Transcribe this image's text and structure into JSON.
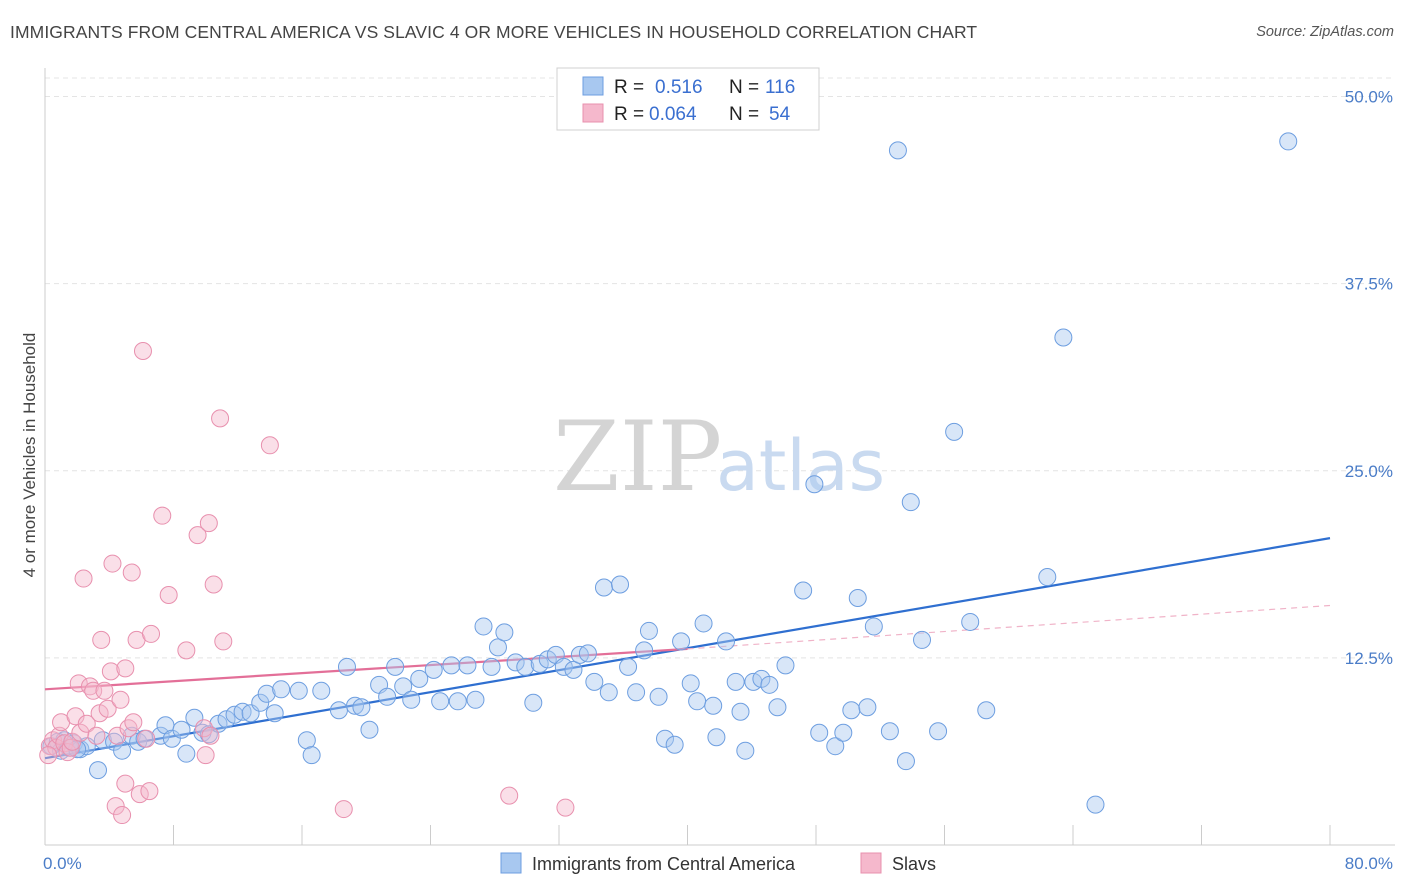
{
  "title": "IMMIGRANTS FROM CENTRAL AMERICA VS SLAVIC 4 OR MORE VEHICLES IN HOUSEHOLD CORRELATION CHART",
  "source": "Source: ZipAtlas.com",
  "watermark": {
    "zip": "ZIP",
    "atlas": "atlas"
  },
  "chart_data": {
    "type": "scatter",
    "title": "IMMIGRANTS FROM CENTRAL AMERICA VS SLAVIC 4 OR MORE VEHICLES IN HOUSEHOLD CORRELATION CHART",
    "xlabel": "",
    "ylabel": "4 or more Vehicles in Household",
    "xlim": [
      0,
      80
    ],
    "ylim": [
      0,
      50
    ],
    "y_ticks": [
      12.5,
      25.0,
      37.5,
      50.0
    ],
    "y_tick_labels": [
      "12.5%",
      "25.0%",
      "37.5%",
      "50.0%"
    ],
    "x_tick_labels": [
      "0.0%",
      "80.0%"
    ],
    "grid": true,
    "legend": {
      "position": "top-center",
      "entries": [
        {
          "r_label": "R =",
          "r_value": "0.516",
          "n_label": "N =",
          "n_value": "116",
          "color": "#a8c8f0"
        },
        {
          "r_label": "R =",
          "r_value": "0.064",
          "n_label": "N =",
          "n_value": "54",
          "color": "#f5b8cc"
        }
      ]
    },
    "series": [
      {
        "name": "Immigrants from Central America",
        "color": "#a8c8f0",
        "stroke": "#6d9ee0",
        "trend": {
          "x": [
            0,
            80
          ],
          "y": [
            5.8,
            20.5
          ],
          "color": "#2f6fd0"
        },
        "points": [
          [
            0.4,
            6.6
          ],
          [
            0.8,
            6.9
          ],
          [
            1.0,
            6.3
          ],
          [
            1.2,
            7.0
          ],
          [
            1.5,
            6.5
          ],
          [
            1.8,
            6.8
          ],
          [
            2.2,
            6.4
          ],
          [
            2.6,
            6.6
          ],
          [
            3.3,
            5.0
          ],
          [
            3.6,
            7.0
          ],
          [
            4.3,
            6.9
          ],
          [
            4.8,
            6.3
          ],
          [
            5.4,
            7.3
          ],
          [
            5.8,
            6.9
          ],
          [
            6.2,
            7.1
          ],
          [
            7.2,
            7.3
          ],
          [
            7.5,
            8.0
          ],
          [
            7.9,
            7.1
          ],
          [
            8.5,
            7.7
          ],
          [
            8.8,
            6.1
          ],
          [
            9.3,
            8.5
          ],
          [
            9.8,
            7.5
          ],
          [
            10.2,
            7.4
          ],
          [
            10.8,
            8.1
          ],
          [
            11.3,
            8.4
          ],
          [
            11.8,
            8.7
          ],
          [
            12.3,
            8.9
          ],
          [
            12.8,
            8.8
          ],
          [
            13.4,
            9.5
          ],
          [
            13.8,
            10.1
          ],
          [
            14.3,
            8.8
          ],
          [
            14.7,
            10.4
          ],
          [
            15.8,
            10.3
          ],
          [
            16.3,
            7.0
          ],
          [
            16.6,
            6.0
          ],
          [
            17.2,
            10.3
          ],
          [
            18.3,
            9.0
          ],
          [
            18.8,
            11.9
          ],
          [
            19.3,
            9.3
          ],
          [
            19.7,
            9.2
          ],
          [
            20.2,
            7.7
          ],
          [
            20.8,
            10.7
          ],
          [
            21.3,
            9.9
          ],
          [
            21.8,
            11.9
          ],
          [
            22.3,
            10.6
          ],
          [
            22.8,
            9.7
          ],
          [
            23.3,
            11.1
          ],
          [
            24.2,
            11.7
          ],
          [
            24.6,
            9.6
          ],
          [
            25.3,
            12.0
          ],
          [
            25.7,
            9.6
          ],
          [
            26.3,
            12.0
          ],
          [
            26.8,
            9.7
          ],
          [
            27.3,
            14.6
          ],
          [
            27.8,
            11.9
          ],
          [
            28.2,
            13.2
          ],
          [
            28.6,
            14.2
          ],
          [
            29.3,
            12.2
          ],
          [
            29.9,
            11.9
          ],
          [
            30.4,
            9.5
          ],
          [
            30.8,
            12.1
          ],
          [
            31.3,
            12.4
          ],
          [
            31.8,
            12.7
          ],
          [
            32.3,
            11.9
          ],
          [
            32.9,
            11.7
          ],
          [
            33.3,
            12.7
          ],
          [
            33.8,
            12.8
          ],
          [
            34.2,
            10.9
          ],
          [
            34.8,
            17.2
          ],
          [
            35.1,
            10.2
          ],
          [
            35.8,
            17.4
          ],
          [
            36.3,
            11.9
          ],
          [
            36.8,
            10.2
          ],
          [
            37.3,
            13.0
          ],
          [
            37.6,
            14.3
          ],
          [
            38.2,
            9.9
          ],
          [
            38.6,
            7.1
          ],
          [
            39.2,
            6.7
          ],
          [
            39.6,
            13.6
          ],
          [
            40.2,
            10.8
          ],
          [
            40.6,
            9.6
          ],
          [
            41.0,
            14.8
          ],
          [
            41.6,
            9.3
          ],
          [
            41.8,
            7.2
          ],
          [
            42.4,
            13.6
          ],
          [
            43.0,
            10.9
          ],
          [
            43.3,
            8.9
          ],
          [
            43.6,
            6.3
          ],
          [
            44.1,
            10.9
          ],
          [
            44.6,
            11.1
          ],
          [
            45.1,
            10.7
          ],
          [
            45.6,
            9.2
          ],
          [
            46.1,
            12.0
          ],
          [
            47.2,
            17.0
          ],
          [
            47.9,
            24.1
          ],
          [
            48.2,
            7.5
          ],
          [
            49.2,
            6.6
          ],
          [
            49.7,
            7.5
          ],
          [
            50.2,
            9.0
          ],
          [
            50.6,
            16.5
          ],
          [
            51.2,
            9.2
          ],
          [
            51.6,
            14.6
          ],
          [
            52.6,
            7.6
          ],
          [
            53.1,
            46.4
          ],
          [
            53.6,
            5.6
          ],
          [
            53.9,
            22.9
          ],
          [
            54.6,
            13.7
          ],
          [
            55.6,
            7.6
          ],
          [
            56.6,
            27.6
          ],
          [
            57.6,
            14.9
          ],
          [
            58.6,
            9.0
          ],
          [
            62.4,
            17.9
          ],
          [
            63.4,
            33.9
          ],
          [
            65.4,
            2.7
          ],
          [
            77.4,
            47.0
          ],
          [
            2.0,
            6.4
          ]
        ]
      },
      {
        "name": "Slavs",
        "color": "#f5b8cc",
        "stroke": "#e890ae",
        "trend": {
          "x": [
            0,
            40
          ],
          "y": [
            10.4,
            13.1
          ],
          "color": "#e36f98",
          "dashed_ext": {
            "x": [
              40,
              80
            ],
            "y": [
              13.1,
              16.0
            ]
          }
        },
        "points": [
          [
            0.3,
            6.6
          ],
          [
            0.5,
            7.0
          ],
          [
            0.7,
            6.5
          ],
          [
            0.9,
            7.3
          ],
          [
            1.0,
            8.2
          ],
          [
            1.2,
            6.8
          ],
          [
            1.4,
            6.2
          ],
          [
            1.6,
            6.5
          ],
          [
            1.7,
            6.9
          ],
          [
            1.9,
            8.6
          ],
          [
            2.1,
            10.8
          ],
          [
            2.2,
            7.5
          ],
          [
            2.4,
            17.8
          ],
          [
            2.6,
            8.1
          ],
          [
            2.8,
            10.6
          ],
          [
            3.0,
            10.3
          ],
          [
            3.2,
            7.3
          ],
          [
            3.4,
            8.8
          ],
          [
            3.5,
            13.7
          ],
          [
            3.7,
            10.3
          ],
          [
            3.9,
            9.1
          ],
          [
            4.1,
            11.6
          ],
          [
            4.2,
            18.8
          ],
          [
            4.4,
            2.6
          ],
          [
            4.5,
            7.3
          ],
          [
            4.7,
            9.7
          ],
          [
            4.8,
            2.0
          ],
          [
            5.0,
            11.8
          ],
          [
            5.0,
            4.1
          ],
          [
            5.2,
            7.8
          ],
          [
            5.4,
            18.2
          ],
          [
            5.5,
            8.2
          ],
          [
            5.7,
            13.7
          ],
          [
            5.9,
            3.4
          ],
          [
            6.1,
            33.0
          ],
          [
            6.3,
            7.1
          ],
          [
            6.5,
            3.6
          ],
          [
            6.6,
            14.1
          ],
          [
            7.3,
            22.0
          ],
          [
            7.7,
            16.7
          ],
          [
            8.8,
            13.0
          ],
          [
            9.5,
            20.7
          ],
          [
            9.9,
            7.8
          ],
          [
            10.0,
            6.0
          ],
          [
            10.2,
            21.5
          ],
          [
            10.3,
            7.3
          ],
          [
            10.5,
            17.4
          ],
          [
            10.9,
            28.5
          ],
          [
            11.1,
            13.6
          ],
          [
            14.0,
            26.7
          ],
          [
            18.6,
            2.4
          ],
          [
            28.9,
            3.3
          ],
          [
            32.4,
            2.5
          ],
          [
            0.2,
            6.0
          ]
        ]
      }
    ]
  },
  "bottom_legend": {
    "series1": "Immigrants from Central America",
    "series2": "Slavs"
  }
}
